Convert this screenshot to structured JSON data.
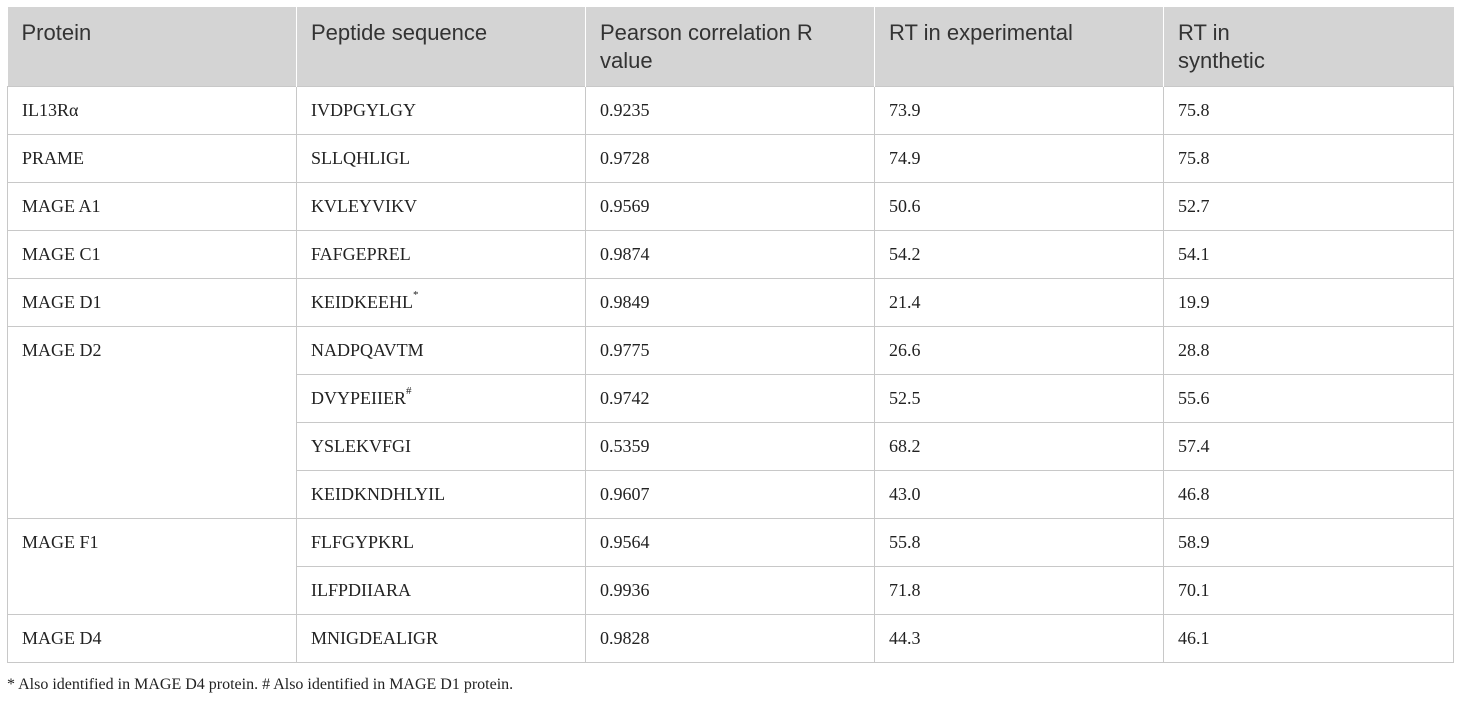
{
  "table": {
    "headers": [
      "Protein",
      "Peptide sequence",
      "Pearson correlation R value",
      "RT in experimental",
      "RT in synthetic"
    ],
    "groups": [
      {
        "protein": "IL13Rα",
        "rows": [
          {
            "seq": "IVDPGYLGY",
            "mark": "",
            "r": "0.9235",
            "exp": "73.9",
            "syn": "75.8"
          }
        ]
      },
      {
        "protein": "PRAME",
        "rows": [
          {
            "seq": "SLLQHLIGL",
            "mark": "",
            "r": "0.9728",
            "exp": "74.9",
            "syn": "75.8"
          }
        ]
      },
      {
        "protein": "MAGE A1",
        "rows": [
          {
            "seq": "KVLEYVIKV",
            "mark": "",
            "r": "0.9569",
            "exp": "50.6",
            "syn": "52.7"
          }
        ]
      },
      {
        "protein": "MAGE C1",
        "rows": [
          {
            "seq": "FAFGEPREL",
            "mark": "",
            "r": "0.9874",
            "exp": "54.2",
            "syn": "54.1"
          }
        ]
      },
      {
        "protein": "MAGE D1",
        "rows": [
          {
            "seq": "KEIDKEEHL",
            "mark": "*",
            "r": "0.9849",
            "exp": "21.4",
            "syn": "19.9"
          }
        ]
      },
      {
        "protein": "MAGE D2",
        "rows": [
          {
            "seq": "NADPQAVTM",
            "mark": "",
            "r": "0.9775",
            "exp": "26.6",
            "syn": "28.8"
          },
          {
            "seq": "DVYPEIIER",
            "mark": "#",
            "r": "0.9742",
            "exp": "52.5",
            "syn": "55.6"
          },
          {
            "seq": "YSLEKVFGI",
            "mark": "",
            "r": "0.5359",
            "exp": "68.2",
            "syn": "57.4"
          },
          {
            "seq": "KEIDKNDHLYIL",
            "mark": "",
            "r": "0.9607",
            "exp": "43.0",
            "syn": "46.8"
          }
        ]
      },
      {
        "protein": "MAGE F1",
        "rows": [
          {
            "seq": "FLFGYPKRL",
            "mark": "",
            "r": "0.9564",
            "exp": "55.8",
            "syn": "58.9"
          },
          {
            "seq": "ILFPDIIARA",
            "mark": "",
            "r": "0.9936",
            "exp": "71.8",
            "syn": "70.1"
          }
        ]
      },
      {
        "protein": "MAGE D4",
        "rows": [
          {
            "seq": "MNIGDEALIGR",
            "mark": "",
            "r": "0.9828",
            "exp": "44.3",
            "syn": "46.1"
          }
        ]
      }
    ]
  },
  "footnote": "* Also identified in MAGE D4 protein. # Also identified in MAGE D1 protein."
}
